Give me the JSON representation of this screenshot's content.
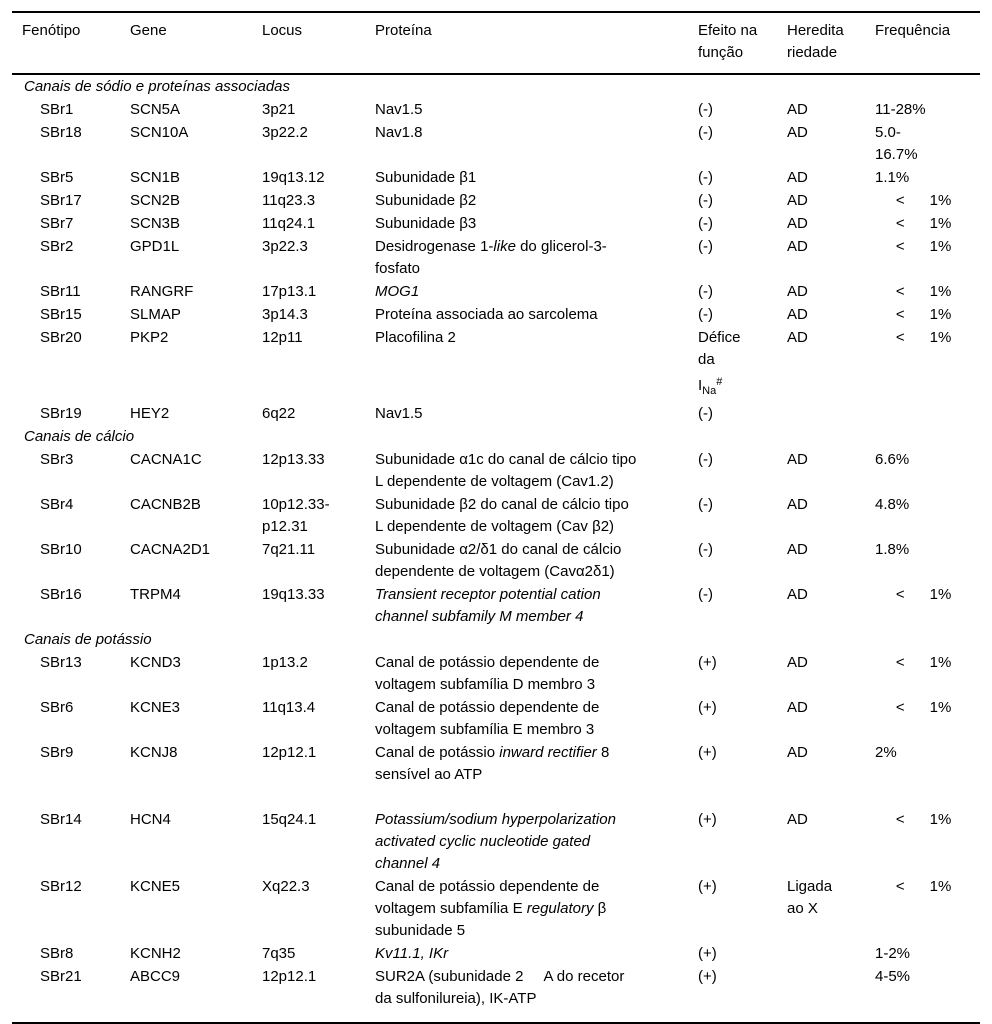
{
  "table": {
    "columns": [
      {
        "key": "phenotype",
        "label": "Fenótipo"
      },
      {
        "key": "gene",
        "label": "Gene"
      },
      {
        "key": "locus",
        "label": "Locus"
      },
      {
        "key": "protein",
        "label": "Proteína"
      },
      {
        "key": "effect",
        "label": "Efeito na\nfunção"
      },
      {
        "key": "heredity",
        "label": "Heredita\nriedade"
      },
      {
        "key": "frequency",
        "label": "Frequência"
      }
    ],
    "sections": [
      {
        "title": "Canais de sódio e proteínas associadas",
        "rows": [
          {
            "phenotype": "SBr1",
            "gene": "SCN5A",
            "locus": "3p21",
            "protein": "Nav1.5",
            "effect": "(-)",
            "heredity": "AD",
            "frequency": "11-28%"
          },
          {
            "phenotype": "SBr18",
            "gene": "SCN10A",
            "locus": "3p22.2",
            "protein": "Nav1.8",
            "effect": "(-)",
            "heredity": "AD",
            "frequency": "5.0-\n16.7%"
          },
          {
            "phenotype": "SBr5",
            "gene": "SCN1B",
            "locus": "19q13.12",
            "protein": "Subunidade β1",
            "effect": "(-)",
            "heredity": "AD",
            "frequency": "1.1%"
          },
          {
            "phenotype": "SBr17",
            "gene": "SCN2B",
            "locus": "11q23.3",
            "protein": "Subunidade β2",
            "effect": "(-)",
            "heredity": "AD",
            "frequency": "     <      1%"
          },
          {
            "phenotype": "SBr7",
            "gene": "SCN3B",
            "locus": "11q24.1",
            "protein": "Subunidade β3",
            "effect": "(-)",
            "heredity": "AD",
            "frequency": "     <      1%"
          },
          {
            "phenotype": "SBr2",
            "gene": "GPD1L",
            "locus": "3p22.3",
            "protein": [
              {
                "x": "Desidrogenase 1-"
              },
              {
                "x": "like",
                "i": true
              },
              {
                "x": " do glicerol-3-\nfosfato"
              }
            ],
            "effect": "(-)",
            "heredity": "AD",
            "frequency": "     <      1%"
          },
          {
            "phenotype": "SBr11",
            "gene": "RANGRF",
            "locus": "17p13.1",
            "protein": [
              {
                "x": "MOG1",
                "i": true
              }
            ],
            "effect": "(-)",
            "heredity": "AD",
            "frequency": "     <      1%"
          },
          {
            "phenotype": "SBr15",
            "gene": "SLMAP",
            "locus": "3p14.3",
            "protein": "Proteína associada ao sarcolema",
            "effect": "(-)",
            "heredity": "AD",
            "frequency": "     <      1%"
          },
          {
            "phenotype": "SBr20",
            "gene": "PKP2",
            "locus": "12p11",
            "protein": "Placofilina 2",
            "effect": [
              {
                "x": "Défice\nda\nI"
              },
              {
                "x": "Na",
                "sub": true
              },
              {
                "x": "#",
                "sup": true
              }
            ],
            "heredity": "AD",
            "frequency": "     <      1%"
          },
          {
            "phenotype": "SBr19",
            "gene": "HEY2",
            "locus": "6q22",
            "protein": "Nav1.5",
            "effect": "(-)",
            "heredity": "",
            "frequency": ""
          }
        ]
      },
      {
        "title": "Canais de cálcio",
        "rows": [
          {
            "phenotype": "SBr3",
            "gene": "CACNA1C",
            "locus": "12p13.33",
            "protein": "Subunidade α1c do canal de cálcio tipo\nL dependente de voltagem (Cav1.2)",
            "effect": "(-)",
            "heredity": "AD",
            "frequency": "6.6%"
          },
          {
            "phenotype": "SBr4",
            "gene": "CACNB2B",
            "locus": "10p12.33-\np12.31",
            "protein": "Subunidade β2 do canal de cálcio tipo\nL dependente de voltagem (Cav β2)",
            "effect": "(-)",
            "heredity": "AD",
            "frequency": "4.8%"
          },
          {
            "phenotype": "SBr10",
            "gene": "CACNA2D1",
            "locus": "7q21.11",
            "protein": "Subunidade α2/δ1 do canal de cálcio\ndependente de voltagem (Cavα2δ1)",
            "effect": "(-)",
            "heredity": "AD",
            "frequency": "1.8%"
          },
          {
            "phenotype": "SBr16",
            "gene": "TRPM4",
            "locus": "19q13.33",
            "protein": [
              {
                "x": "Transient receptor potential cation\nchannel subfamily M member 4",
                "i": true
              }
            ],
            "effect": "(-)",
            "heredity": "AD",
            "frequency": "     <      1%"
          }
        ]
      },
      {
        "title": "Canais de potássio",
        "rows": [
          {
            "phenotype": "SBr13",
            "gene": "KCND3",
            "locus": "1p13.2",
            "protein": "Canal de potássio dependente de\nvoltagem subfamília D membro 3",
            "effect": "(+)",
            "heredity": "AD",
            "frequency": "     <      1%"
          },
          {
            "phenotype": "SBr6",
            "gene": "KCNE3",
            "locus": "11q13.4",
            "protein": "Canal de potássio dependente de\nvoltagem subfamília E membro 3",
            "effect": "(+)",
            "heredity": "AD",
            "frequency": "     <      1%"
          },
          {
            "phenotype": "SBr9",
            "gene": "KCNJ8",
            "locus": "12p12.1",
            "protein": [
              {
                "x": "Canal de potássio "
              },
              {
                "x": "inward rectifier",
                "i": true
              },
              {
                "x": " 8\nsensível ao ATP\n "
              }
            ],
            "effect": "(+)",
            "heredity": "AD",
            "frequency": "2%"
          },
          {
            "phenotype": "SBr14",
            "gene": "HCN4",
            "locus": "15q24.1",
            "protein": [
              {
                "x": "Potassium/sodium hyperpolarization\nactivated cyclic nucleotide gated\nchannel 4",
                "i": true
              }
            ],
            "effect": "(+)",
            "heredity": "AD",
            "frequency": "     <      1%"
          },
          {
            "phenotype": "SBr12",
            "gene": "KCNE5",
            "locus": "Xq22.3",
            "protein": [
              {
                "x": "Canal de potássio dependente de\nvoltagem subfamília E "
              },
              {
                "x": "regulatory",
                "i": true
              },
              {
                "x": " β\nsubunidade 5"
              }
            ],
            "effect": "(+)",
            "heredity": "Ligada\nao X",
            "frequency": "     <      1%"
          },
          {
            "phenotype": "SBr8",
            "gene": "KCNH2",
            "locus": "7q35",
            "protein": [
              {
                "x": "Kv11.1, IKr",
                "i": true
              }
            ],
            "effect": "(+)",
            "heredity": "",
            "frequency": "1-2%"
          },
          {
            "phenotype": "SBr21",
            "gene": "ABCC9",
            "locus": "12p12.1",
            "protein": "SUR2A (subunidade 2     A do recetor\nda sulfonilureia), IK-ATP",
            "effect": "(+)",
            "heredity": "",
            "frequency": "4-5%"
          }
        ]
      }
    ]
  }
}
